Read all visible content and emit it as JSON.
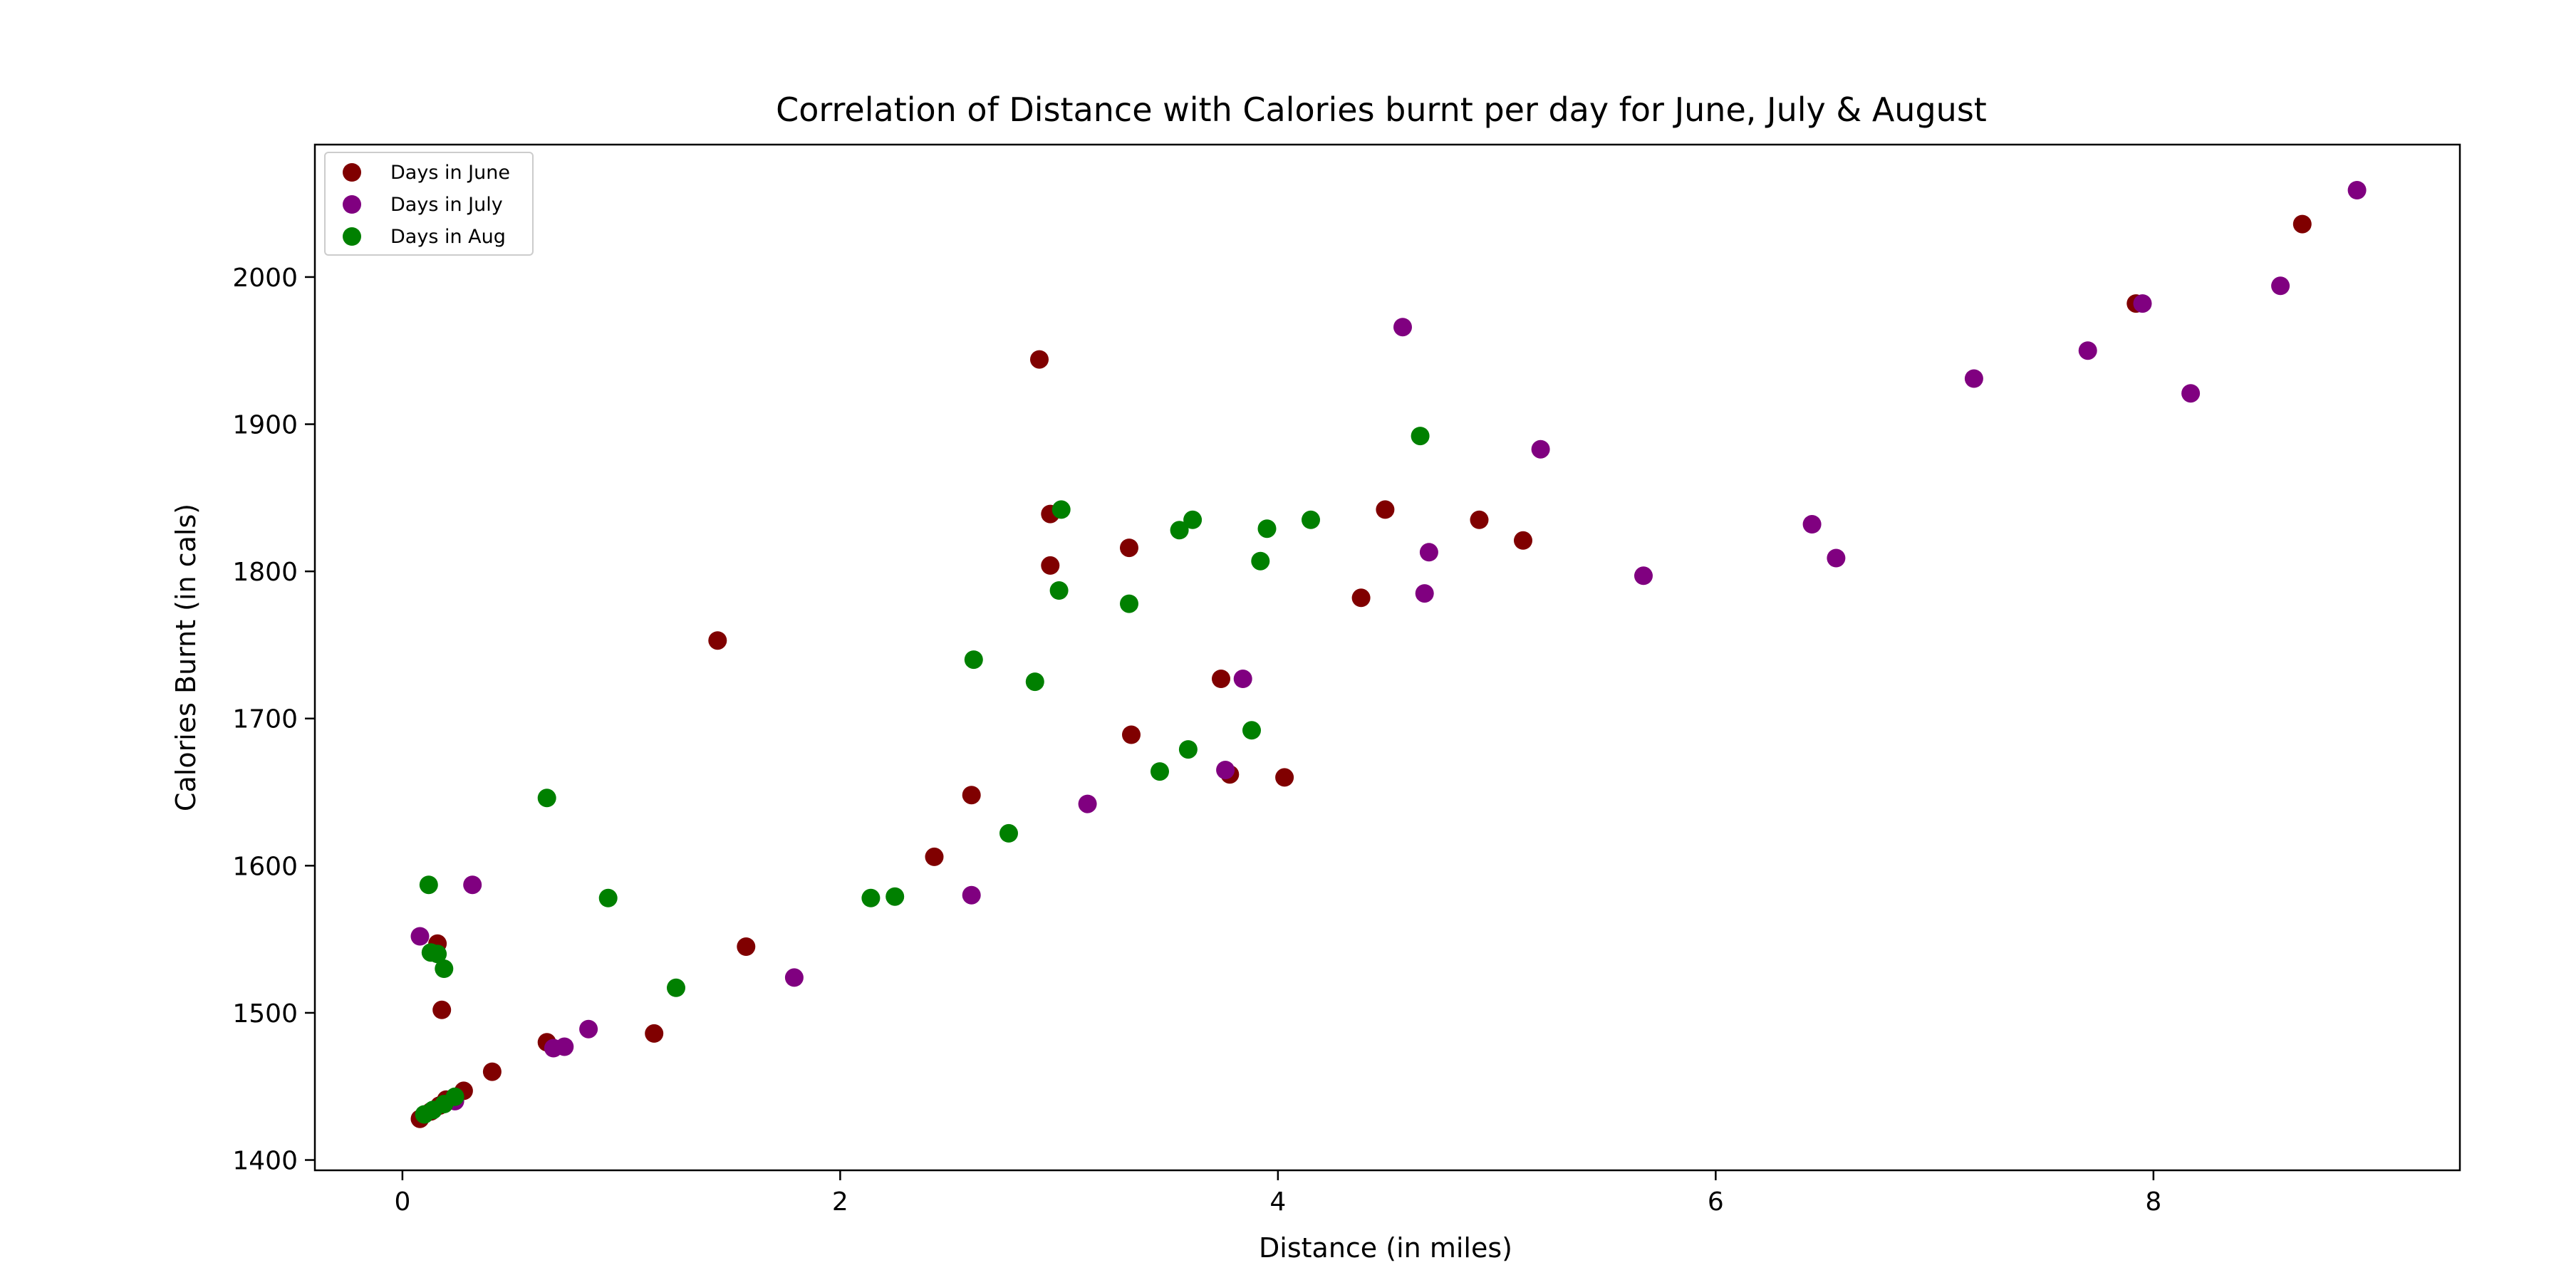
{
  "chart_data": {
    "type": "scatter",
    "title": "Correlation of Distance with Calories burnt per day for June, July & August",
    "xlabel": "Distance (in miles)",
    "ylabel": "Calories Burnt (in cals)",
    "xlim": [
      -0.4,
      9.4
    ],
    "ylim": [
      1393,
      2090
    ],
    "xticks": [
      0,
      2,
      4,
      6,
      8
    ],
    "xtick_labels": [
      "0",
      "2",
      "4",
      "6",
      "8"
    ],
    "yticks": [
      1400,
      1500,
      1600,
      1700,
      1800,
      1900,
      2000
    ],
    "ytick_labels": [
      "1400",
      "1500",
      "1600",
      "1700",
      "1800",
      "1900",
      "2000"
    ],
    "grid": false,
    "legend_position": "top-left",
    "series": [
      {
        "name": "Days in June",
        "color": "#800000",
        "points": [
          [
            0.08,
            1428
          ],
          [
            0.13,
            1433
          ],
          [
            0.17,
            1437
          ],
          [
            0.2,
            1441
          ],
          [
            0.28,
            1447
          ],
          [
            0.41,
            1460
          ],
          [
            0.18,
            1502
          ],
          [
            0.16,
            1547
          ],
          [
            0.66,
            1480
          ],
          [
            1.15,
            1486
          ],
          [
            1.44,
            1753
          ],
          [
            1.57,
            1545
          ],
          [
            2.43,
            1606
          ],
          [
            2.6,
            1648
          ],
          [
            2.91,
            1944
          ],
          [
            2.96,
            1839
          ],
          [
            2.96,
            1804
          ],
          [
            3.32,
            1816
          ],
          [
            3.33,
            1689
          ],
          [
            3.74,
            1727
          ],
          [
            3.78,
            1662
          ],
          [
            4.03,
            1660
          ],
          [
            4.38,
            1782
          ],
          [
            4.49,
            1842
          ],
          [
            4.92,
            1835
          ],
          [
            5.12,
            1821
          ],
          [
            7.92,
            1982
          ],
          [
            8.68,
            2036
          ]
        ]
      },
      {
        "name": "Days in July",
        "color": "#800080",
        "points": [
          [
            0.08,
            1552
          ],
          [
            0.32,
            1587
          ],
          [
            0.24,
            1440
          ],
          [
            0.69,
            1476
          ],
          [
            0.74,
            1477
          ],
          [
            0.85,
            1489
          ],
          [
            1.79,
            1524
          ],
          [
            2.6,
            1580
          ],
          [
            3.13,
            1642
          ],
          [
            3.76,
            1665
          ],
          [
            3.84,
            1727
          ],
          [
            4.57,
            1966
          ],
          [
            4.67,
            1785
          ],
          [
            4.69,
            1813
          ],
          [
            5.2,
            1883
          ],
          [
            5.67,
            1797
          ],
          [
            6.44,
            1832
          ],
          [
            6.55,
            1809
          ],
          [
            7.18,
            1931
          ],
          [
            7.7,
            1950
          ],
          [
            7.95,
            1982
          ],
          [
            8.17,
            1921
          ],
          [
            8.58,
            1994
          ],
          [
            8.93,
            2059
          ]
        ]
      },
      {
        "name": "Days in Aug",
        "color": "#008000",
        "points": [
          [
            0.1,
            1431
          ],
          [
            0.14,
            1434
          ],
          [
            0.19,
            1438
          ],
          [
            0.24,
            1443
          ],
          [
            0.12,
            1587
          ],
          [
            0.13,
            1541
          ],
          [
            0.16,
            1540
          ],
          [
            0.19,
            1530
          ],
          [
            0.66,
            1646
          ],
          [
            0.94,
            1578
          ],
          [
            1.25,
            1517
          ],
          [
            2.14,
            1578
          ],
          [
            2.25,
            1579
          ],
          [
            2.61,
            1740
          ],
          [
            2.77,
            1622
          ],
          [
            2.89,
            1725
          ],
          [
            3.0,
            1787
          ],
          [
            3.01,
            1842
          ],
          [
            3.32,
            1778
          ],
          [
            3.46,
            1664
          ],
          [
            3.55,
            1828
          ],
          [
            3.59,
            1679
          ],
          [
            3.61,
            1835
          ],
          [
            3.88,
            1692
          ],
          [
            3.92,
            1807
          ],
          [
            3.95,
            1829
          ],
          [
            4.15,
            1835
          ],
          [
            4.65,
            1892
          ]
        ]
      }
    ]
  }
}
